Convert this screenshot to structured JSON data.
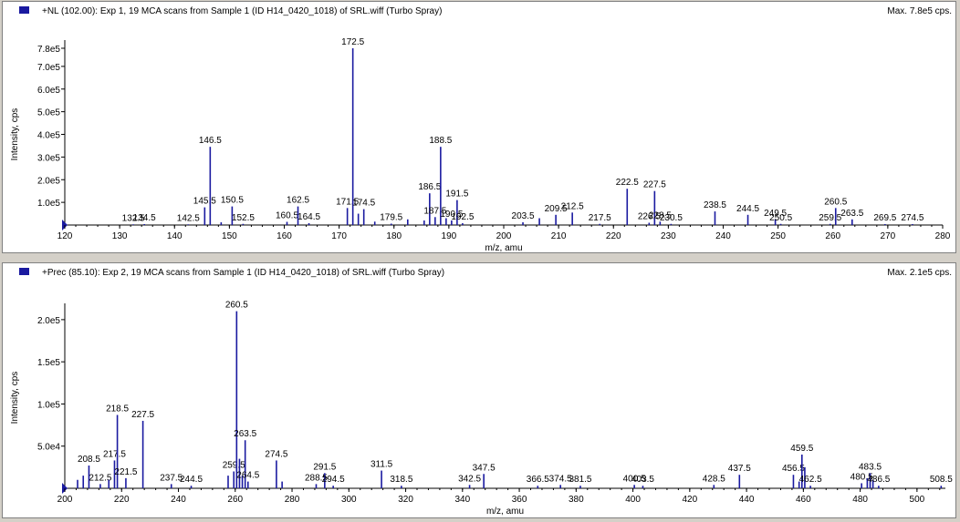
{
  "chart_data": [
    {
      "type": "bar",
      "title": "+NL (102.00): Exp 1, 19 MCA scans from Sample 1 (ID H14_0420_1018) of SRL.wiff (Turbo Spray)",
      "max_label": "Max. 7.8e5 cps.",
      "xlabel": "m/z, amu",
      "ylabel": "Intensity, cps",
      "xlim": [
        120,
        280
      ],
      "ylim": [
        0,
        800000
      ],
      "x_ticks": [
        120,
        130,
        140,
        150,
        160,
        170,
        180,
        190,
        200,
        210,
        220,
        230,
        240,
        250,
        260,
        270,
        280
      ],
      "y_ticks": [
        {
          "value": 100000,
          "label": "1.0e5"
        },
        {
          "value": 200000,
          "label": "2.0e5"
        },
        {
          "value": 300000,
          "label": "3.0e5"
        },
        {
          "value": 400000,
          "label": "4.0e5"
        },
        {
          "value": 500000,
          "label": "5.0e5"
        },
        {
          "value": 600000,
          "label": "6.0e5"
        },
        {
          "value": 700000,
          "label": "7.0e5"
        },
        {
          "value": 780000,
          "label": "7.8e5"
        }
      ],
      "peaks": [
        {
          "x": 132.5,
          "y": 3000,
          "label": "132.5"
        },
        {
          "x": 134.5,
          "y": 4000,
          "label": "134.5"
        },
        {
          "x": 142.5,
          "y": 3000,
          "label": "142.5"
        },
        {
          "x": 145.5,
          "y": 78000,
          "label": "145.5"
        },
        {
          "x": 146.5,
          "y": 345000,
          "label": "146.5"
        },
        {
          "x": 148.5,
          "y": 12000,
          "label": ""
        },
        {
          "x": 150.5,
          "y": 82000,
          "label": "150.5"
        },
        {
          "x": 152.5,
          "y": 5000,
          "label": "152.5"
        },
        {
          "x": 160.5,
          "y": 14000,
          "label": "160.5"
        },
        {
          "x": 162.5,
          "y": 82000,
          "label": "162.5"
        },
        {
          "x": 164.5,
          "y": 8000,
          "label": "164.5"
        },
        {
          "x": 171.5,
          "y": 75000,
          "label": "171.5"
        },
        {
          "x": 172.5,
          "y": 780000,
          "label": "172.5"
        },
        {
          "x": 173.5,
          "y": 50000,
          "label": ""
        },
        {
          "x": 174.5,
          "y": 70000,
          "label": "174.5"
        },
        {
          "x": 176.5,
          "y": 15000,
          "label": ""
        },
        {
          "x": 179.5,
          "y": 6000,
          "label": "179.5"
        },
        {
          "x": 182.5,
          "y": 25000,
          "label": ""
        },
        {
          "x": 185.5,
          "y": 20000,
          "label": ""
        },
        {
          "x": 186.5,
          "y": 140000,
          "label": "186.5"
        },
        {
          "x": 187.5,
          "y": 35000,
          "label": "187.5"
        },
        {
          "x": 188.5,
          "y": 345000,
          "label": "188.5"
        },
        {
          "x": 189.5,
          "y": 30000,
          "label": ""
        },
        {
          "x": 190.5,
          "y": 20000,
          "label": "190.5"
        },
        {
          "x": 191.5,
          "y": 110000,
          "label": "191.5"
        },
        {
          "x": 192.5,
          "y": 8000,
          "label": "192.5"
        },
        {
          "x": 203.5,
          "y": 12000,
          "label": "203.5"
        },
        {
          "x": 206.5,
          "y": 30000,
          "label": ""
        },
        {
          "x": 209.5,
          "y": 45000,
          "label": "209.5"
        },
        {
          "x": 212.5,
          "y": 55000,
          "label": "212.5"
        },
        {
          "x": 217.5,
          "y": 5000,
          "label": "217.5"
        },
        {
          "x": 222.5,
          "y": 160000,
          "label": "222.5"
        },
        {
          "x": 226.5,
          "y": 10000,
          "label": "226.5"
        },
        {
          "x": 227.5,
          "y": 150000,
          "label": "227.5"
        },
        {
          "x": 228.5,
          "y": 15000,
          "label": "228.5"
        },
        {
          "x": 230.5,
          "y": 5000,
          "label": "230.5"
        },
        {
          "x": 238.5,
          "y": 60000,
          "label": "238.5"
        },
        {
          "x": 244.5,
          "y": 45000,
          "label": "244.5"
        },
        {
          "x": 249.5,
          "y": 25000,
          "label": "249.5"
        },
        {
          "x": 250.5,
          "y": 5000,
          "label": "250.5"
        },
        {
          "x": 259.5,
          "y": 5000,
          "label": "259.5"
        },
        {
          "x": 260.5,
          "y": 75000,
          "label": "260.5"
        },
        {
          "x": 263.5,
          "y": 25000,
          "label": "263.5"
        },
        {
          "x": 269.5,
          "y": 4000,
          "label": "269.5"
        },
        {
          "x": 274.5,
          "y": 4000,
          "label": "274.5"
        }
      ]
    },
    {
      "type": "bar",
      "title": "+Prec (85.10): Exp 2, 19 MCA scans from Sample 1 (ID H14_0420_1018) of SRL.wiff (Turbo Spray)",
      "max_label": "Max. 2.1e5 cps.",
      "xlabel": "m/z, amu",
      "ylabel": "Intensity, cps",
      "xlim": [
        200,
        510
      ],
      "ylim": [
        0,
        215000
      ],
      "x_ticks": [
        200,
        220,
        240,
        260,
        280,
        300,
        320,
        340,
        360,
        380,
        400,
        420,
        440,
        460,
        480,
        500
      ],
      "y_ticks": [
        {
          "value": 50000,
          "label": "5.0e4"
        },
        {
          "value": 100000,
          "label": "1.0e5"
        },
        {
          "value": 150000,
          "label": "1.5e5"
        },
        {
          "value": 200000,
          "label": "2.0e5"
        }
      ],
      "peaks": [
        {
          "x": 204.5,
          "y": 10000,
          "label": ""
        },
        {
          "x": 206.5,
          "y": 15000,
          "label": ""
        },
        {
          "x": 208.5,
          "y": 27000,
          "label": "208.5"
        },
        {
          "x": 212.5,
          "y": 5000,
          "label": "212.5"
        },
        {
          "x": 215.5,
          "y": 10000,
          "label": ""
        },
        {
          "x": 217.5,
          "y": 33000,
          "label": "217.5"
        },
        {
          "x": 218.5,
          "y": 87000,
          "label": "218.5"
        },
        {
          "x": 221.5,
          "y": 12000,
          "label": "221.5"
        },
        {
          "x": 227.5,
          "y": 80000,
          "label": "227.5"
        },
        {
          "x": 237.5,
          "y": 5000,
          "label": "237.5"
        },
        {
          "x": 244.5,
          "y": 3000,
          "label": "244.5"
        },
        {
          "x": 257.5,
          "y": 15000,
          "label": ""
        },
        {
          "x": 259.5,
          "y": 20000,
          "label": "259.5"
        },
        {
          "x": 260.5,
          "y": 210000,
          "label": "260.5"
        },
        {
          "x": 261.5,
          "y": 35000,
          "label": ""
        },
        {
          "x": 262.5,
          "y": 15000,
          "label": ""
        },
        {
          "x": 263.5,
          "y": 57000,
          "label": "263.5"
        },
        {
          "x": 264.5,
          "y": 8000,
          "label": "264.5"
        },
        {
          "x": 274.5,
          "y": 33000,
          "label": "274.5"
        },
        {
          "x": 276.5,
          "y": 8000,
          "label": ""
        },
        {
          "x": 288.5,
          "y": 5000,
          "label": "288.5"
        },
        {
          "x": 291.5,
          "y": 18000,
          "label": "291.5"
        },
        {
          "x": 294.5,
          "y": 3000,
          "label": "294.5"
        },
        {
          "x": 311.5,
          "y": 21000,
          "label": "311.5"
        },
        {
          "x": 318.5,
          "y": 3000,
          "label": "318.5"
        },
        {
          "x": 342.5,
          "y": 4000,
          "label": "342.5"
        },
        {
          "x": 347.5,
          "y": 17000,
          "label": "347.5"
        },
        {
          "x": 366.5,
          "y": 3000,
          "label": "366.5"
        },
        {
          "x": 374.5,
          "y": 4000,
          "label": "374.5"
        },
        {
          "x": 381.5,
          "y": 3000,
          "label": "381.5"
        },
        {
          "x": 400.5,
          "y": 4000,
          "label": "400.5"
        },
        {
          "x": 403.5,
          "y": 3000,
          "label": "403.5"
        },
        {
          "x": 428.5,
          "y": 4000,
          "label": "428.5"
        },
        {
          "x": 437.5,
          "y": 16000,
          "label": "437.5"
        },
        {
          "x": 456.5,
          "y": 16000,
          "label": "456.5"
        },
        {
          "x": 458.5,
          "y": 8000,
          "label": ""
        },
        {
          "x": 459.5,
          "y": 40000,
          "label": "459.5"
        },
        {
          "x": 460.5,
          "y": 25000,
          "label": ""
        },
        {
          "x": 462.5,
          "y": 3000,
          "label": "462.5"
        },
        {
          "x": 480.5,
          "y": 6000,
          "label": "480.5"
        },
        {
          "x": 482.5,
          "y": 12000,
          "label": ""
        },
        {
          "x": 483.5,
          "y": 18000,
          "label": "483.5"
        },
        {
          "x": 484.5,
          "y": 10000,
          "label": ""
        },
        {
          "x": 486.5,
          "y": 3000,
          "label": "486.5"
        },
        {
          "x": 508.5,
          "y": 3000,
          "label": "508.5"
        }
      ]
    }
  ]
}
